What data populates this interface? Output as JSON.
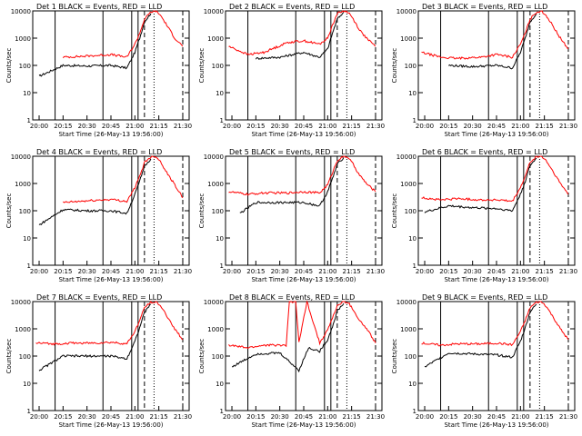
{
  "chart_data": [
    {
      "type": "line",
      "title": "Det 1  BLACK = Events, RED = LLD",
      "xlabel": "Start Time (26-May-13 19:56:00)",
      "ylabel": "Counts/sec",
      "xticks": [
        "20:00",
        "20:15",
        "20:30",
        "20:45",
        "21:00",
        "21:15",
        "21:30"
      ],
      "yticks": [
        "1",
        "10",
        "100",
        "1000",
        "10000"
      ],
      "ylim": [
        1,
        10000
      ],
      "y_scale": "log",
      "series": [
        {
          "color": "#000000",
          "x": [
            "20:00",
            "20:15",
            "20:30",
            "20:45",
            "20:55",
            "21:00",
            "21:03",
            "21:06",
            "21:10"
          ],
          "values": [
            40,
            100,
            95,
            100,
            80,
            300,
            1000,
            4000,
            8000
          ]
        },
        {
          "color": "#ff0000",
          "x": [
            "20:15",
            "20:30",
            "20:45",
            "20:55",
            "21:00",
            "21:03",
            "21:06",
            "21:10",
            "21:13",
            "21:16",
            "21:20",
            "21:25",
            "21:30"
          ],
          "values": [
            200,
            220,
            250,
            200,
            600,
            1500,
            5000,
            9000,
            10000,
            7000,
            3000,
            1000,
            500
          ]
        }
      ]
    },
    {
      "type": "line",
      "title": "Det 2  BLACK = Events, RED = LLD",
      "xlabel": "Start Time (26-May-13 19:56:00)",
      "ylabel": "Counts/sec",
      "xticks": [
        "20:00",
        "20:15",
        "20:30",
        "20:45",
        "21:00",
        "21:15",
        "21:30"
      ],
      "yticks": [
        "1",
        "10",
        "100",
        "1000",
        "10000"
      ],
      "ylim": [
        1,
        10000
      ],
      "y_scale": "log",
      "series": [
        {
          "color": "#000000",
          "x": [
            "20:15",
            "20:30",
            "20:45",
            "20:55",
            "21:00",
            "21:03",
            "21:06",
            "21:10"
          ],
          "values": [
            180,
            200,
            300,
            200,
            400,
            1500,
            5000,
            9000
          ]
        },
        {
          "color": "#ff0000",
          "x": [
            "19:58",
            "20:10",
            "20:20",
            "20:35",
            "20:45",
            "20:55",
            "21:00",
            "21:03",
            "21:06",
            "21:10",
            "21:13",
            "21:16",
            "21:20",
            "21:25",
            "21:30"
          ],
          "values": [
            500,
            250,
            300,
            700,
            800,
            600,
            1000,
            3000,
            8000,
            10000,
            9000,
            5000,
            2000,
            900,
            500
          ]
        }
      ]
    },
    {
      "type": "line",
      "title": "Det 3  BLACK = Events, RED = LLD",
      "xlabel": "Start Time (26-May-13 19:56:00)",
      "ylabel": "Counts/sec",
      "xticks": [
        "20:00",
        "20:15",
        "20:30",
        "20:45",
        "21:00",
        "21:15",
        "21:30"
      ],
      "yticks": [
        "1",
        "10",
        "100",
        "1000",
        "10000"
      ],
      "ylim": [
        1,
        10000
      ],
      "y_scale": "log",
      "series": [
        {
          "color": "#000000",
          "x": [
            "20:15",
            "20:30",
            "20:45",
            "20:55",
            "21:00",
            "21:03",
            "21:06",
            "21:10"
          ],
          "values": [
            100,
            90,
            100,
            80,
            300,
            1000,
            4000,
            8000
          ]
        },
        {
          "color": "#ff0000",
          "x": [
            "19:58",
            "20:10",
            "20:20",
            "20:35",
            "20:45",
            "20:55",
            "21:00",
            "21:03",
            "21:06",
            "21:10",
            "21:13",
            "21:16",
            "21:20",
            "21:25",
            "21:30"
          ],
          "values": [
            300,
            200,
            180,
            200,
            250,
            200,
            600,
            1500,
            5000,
            9000,
            10000,
            7000,
            3000,
            1000,
            400
          ]
        }
      ]
    },
    {
      "type": "line",
      "title": "Det 4  BLACK = Events, RED = LLD",
      "xlabel": "Start Time (26-May-13 19:56:00)",
      "ylabel": "Counts/sec",
      "xticks": [
        "20:00",
        "20:15",
        "20:30",
        "20:45",
        "21:00",
        "21:15",
        "21:30"
      ],
      "yticks": [
        "1",
        "10",
        "100",
        "1000",
        "10000"
      ],
      "ylim": [
        1,
        10000
      ],
      "y_scale": "log",
      "series": [
        {
          "color": "#000000",
          "x": [
            "20:00",
            "20:15",
            "20:30",
            "20:45",
            "20:55",
            "21:00",
            "21:03",
            "21:06",
            "21:10"
          ],
          "values": [
            30,
            110,
            100,
            100,
            80,
            400,
            1200,
            4500,
            8000
          ]
        },
        {
          "color": "#ff0000",
          "x": [
            "20:15",
            "20:30",
            "20:45",
            "20:55",
            "21:00",
            "21:03",
            "21:06",
            "21:10",
            "21:13",
            "21:16",
            "21:20",
            "21:25",
            "21:30"
          ],
          "values": [
            200,
            230,
            260,
            220,
            700,
            1800,
            6000,
            9500,
            10000,
            6500,
            2500,
            900,
            300
          ]
        }
      ]
    },
    {
      "type": "line",
      "title": "Det 5  BLACK = Events, RED = LLD",
      "xlabel": "Start Time (26-May-13 19:56:00)",
      "ylabel": "Counts/sec",
      "xticks": [
        "20:00",
        "20:15",
        "20:30",
        "20:45",
        "21:00",
        "21:15",
        "21:30"
      ],
      "yticks": [
        "1",
        "10",
        "100",
        "1000",
        "10000"
      ],
      "ylim": [
        1,
        10000
      ],
      "y_scale": "log",
      "series": [
        {
          "color": "#000000",
          "x": [
            "20:05",
            "20:15",
            "20:30",
            "20:45",
            "20:55",
            "21:00",
            "21:03",
            "21:06",
            "21:10"
          ],
          "values": [
            80,
            200,
            200,
            200,
            150,
            500,
            1500,
            5000,
            9000
          ]
        },
        {
          "color": "#ff0000",
          "x": [
            "19:58",
            "20:10",
            "20:20",
            "20:35",
            "20:45",
            "20:55",
            "21:00",
            "21:03",
            "21:06",
            "21:10",
            "21:13",
            "21:16",
            "21:20",
            "21:25",
            "21:30"
          ],
          "values": [
            500,
            400,
            450,
            450,
            500,
            450,
            900,
            2500,
            7000,
            10000,
            9000,
            5000,
            2000,
            900,
            500
          ]
        }
      ]
    },
    {
      "type": "line",
      "title": "Det 6  BLACK = Events, RED = LLD",
      "xlabel": "Start Time (26-May-13 19:56:00)",
      "ylabel": "Counts/sec",
      "xticks": [
        "20:00",
        "20:15",
        "20:30",
        "20:45",
        "21:00",
        "21:15",
        "21:30"
      ],
      "yticks": [
        "1",
        "10",
        "100",
        "1000",
        "10000"
      ],
      "ylim": [
        1,
        10000
      ],
      "y_scale": "log",
      "series": [
        {
          "color": "#000000",
          "x": [
            "20:00",
            "20:15",
            "20:30",
            "20:45",
            "20:55",
            "21:00",
            "21:03",
            "21:06",
            "21:10"
          ],
          "values": [
            90,
            150,
            130,
            120,
            100,
            400,
            1200,
            4500,
            8500
          ]
        },
        {
          "color": "#ff0000",
          "x": [
            "19:58",
            "20:10",
            "20:20",
            "20:35",
            "20:45",
            "20:55",
            "21:00",
            "21:03",
            "21:06",
            "21:10",
            "21:13",
            "21:16",
            "21:20",
            "21:25",
            "21:30"
          ],
          "values": [
            300,
            250,
            280,
            250,
            250,
            220,
            700,
            1800,
            6000,
            9500,
            10000,
            7000,
            3000,
            1000,
            400
          ]
        }
      ]
    },
    {
      "type": "line",
      "title": "Det 7  BLACK = Events, RED = LLD",
      "xlabel": "Start Time (26-May-13 19:56:00)",
      "ylabel": "Counts/sec",
      "xticks": [
        "20:00",
        "20:15",
        "20:30",
        "20:45",
        "21:00",
        "21:15",
        "21:30"
      ],
      "yticks": [
        "1",
        "10",
        "100",
        "1000",
        "10000"
      ],
      "ylim": [
        1,
        10000
      ],
      "y_scale": "log",
      "series": [
        {
          "color": "#000000",
          "x": [
            "20:00",
            "20:15",
            "20:30",
            "20:45",
            "20:55",
            "21:00",
            "21:03",
            "21:06",
            "21:10"
          ],
          "values": [
            30,
            100,
            100,
            100,
            80,
            350,
            1100,
            4000,
            8000
          ]
        },
        {
          "color": "#ff0000",
          "x": [
            "19:58",
            "20:10",
            "20:20",
            "20:35",
            "20:45",
            "20:55",
            "21:00",
            "21:03",
            "21:06",
            "21:10",
            "21:13",
            "21:16",
            "21:20",
            "21:25",
            "21:30"
          ],
          "values": [
            300,
            280,
            300,
            300,
            320,
            280,
            800,
            2000,
            6000,
            9500,
            10000,
            7000,
            3000,
            1000,
            400
          ]
        }
      ]
    },
    {
      "type": "line",
      "title": "Det 8  BLACK = Events, RED = LLD",
      "xlabel": "Start Time (26-May-13 19:56:00)",
      "ylabel": "Counts/sec",
      "xticks": [
        "20:00",
        "20:15",
        "20:30",
        "20:45",
        "21:00",
        "21:15",
        "21:30"
      ],
      "yticks": [
        "1",
        "10",
        "100",
        "1000",
        "10000"
      ],
      "ylim": [
        1,
        10000
      ],
      "y_scale": "log",
      "series": [
        {
          "color": "#000000",
          "x": [
            "20:00",
            "20:15",
            "20:30",
            "20:42",
            "20:48",
            "20:55",
            "21:00",
            "21:03",
            "21:06",
            "21:10"
          ],
          "values": [
            40,
            120,
            130,
            30,
            200,
            150,
            400,
            1200,
            4500,
            8500
          ]
        },
        {
          "color": "#ff0000",
          "x": [
            "19:58",
            "20:10",
            "20:20",
            "20:34",
            "20:36",
            "20:40",
            "20:42",
            "20:47",
            "20:55",
            "21:00",
            "21:03",
            "21:06",
            "21:10",
            "21:13",
            "21:16",
            "21:20",
            "21:25",
            "21:30"
          ],
          "values": [
            250,
            200,
            250,
            250,
            10000,
            10000,
            300,
            10000,
            300,
            900,
            2500,
            7000,
            10000,
            9000,
            5000,
            2000,
            900,
            300
          ]
        }
      ]
    },
    {
      "type": "line",
      "title": "Det 9  BLACK = Events, RED = LLD",
      "xlabel": "Start Time (26-May-13 19:56:00)",
      "ylabel": "Counts/sec",
      "xticks": [
        "20:00",
        "20:15",
        "20:30",
        "20:45",
        "21:00",
        "21:15",
        "21:30"
      ],
      "yticks": [
        "1",
        "10",
        "100",
        "1000",
        "10000"
      ],
      "ylim": [
        1,
        10000
      ],
      "y_scale": "log",
      "series": [
        {
          "color": "#000000",
          "x": [
            "20:00",
            "20:15",
            "20:30",
            "20:45",
            "20:55",
            "21:00",
            "21:03",
            "21:06",
            "21:10"
          ],
          "values": [
            40,
            130,
            120,
            110,
            90,
            350,
            1100,
            4200,
            8000
          ]
        },
        {
          "color": "#ff0000",
          "x": [
            "19:58",
            "20:10",
            "20:20",
            "20:35",
            "20:45",
            "20:55",
            "21:00",
            "21:03",
            "21:06",
            "21:10",
            "21:13",
            "21:16",
            "21:20",
            "21:25",
            "21:30"
          ],
          "values": [
            300,
            250,
            280,
            280,
            300,
            260,
            800,
            2000,
            6000,
            9500,
            10000,
            7000,
            3000,
            1000,
            400
          ]
        }
      ]
    }
  ]
}
